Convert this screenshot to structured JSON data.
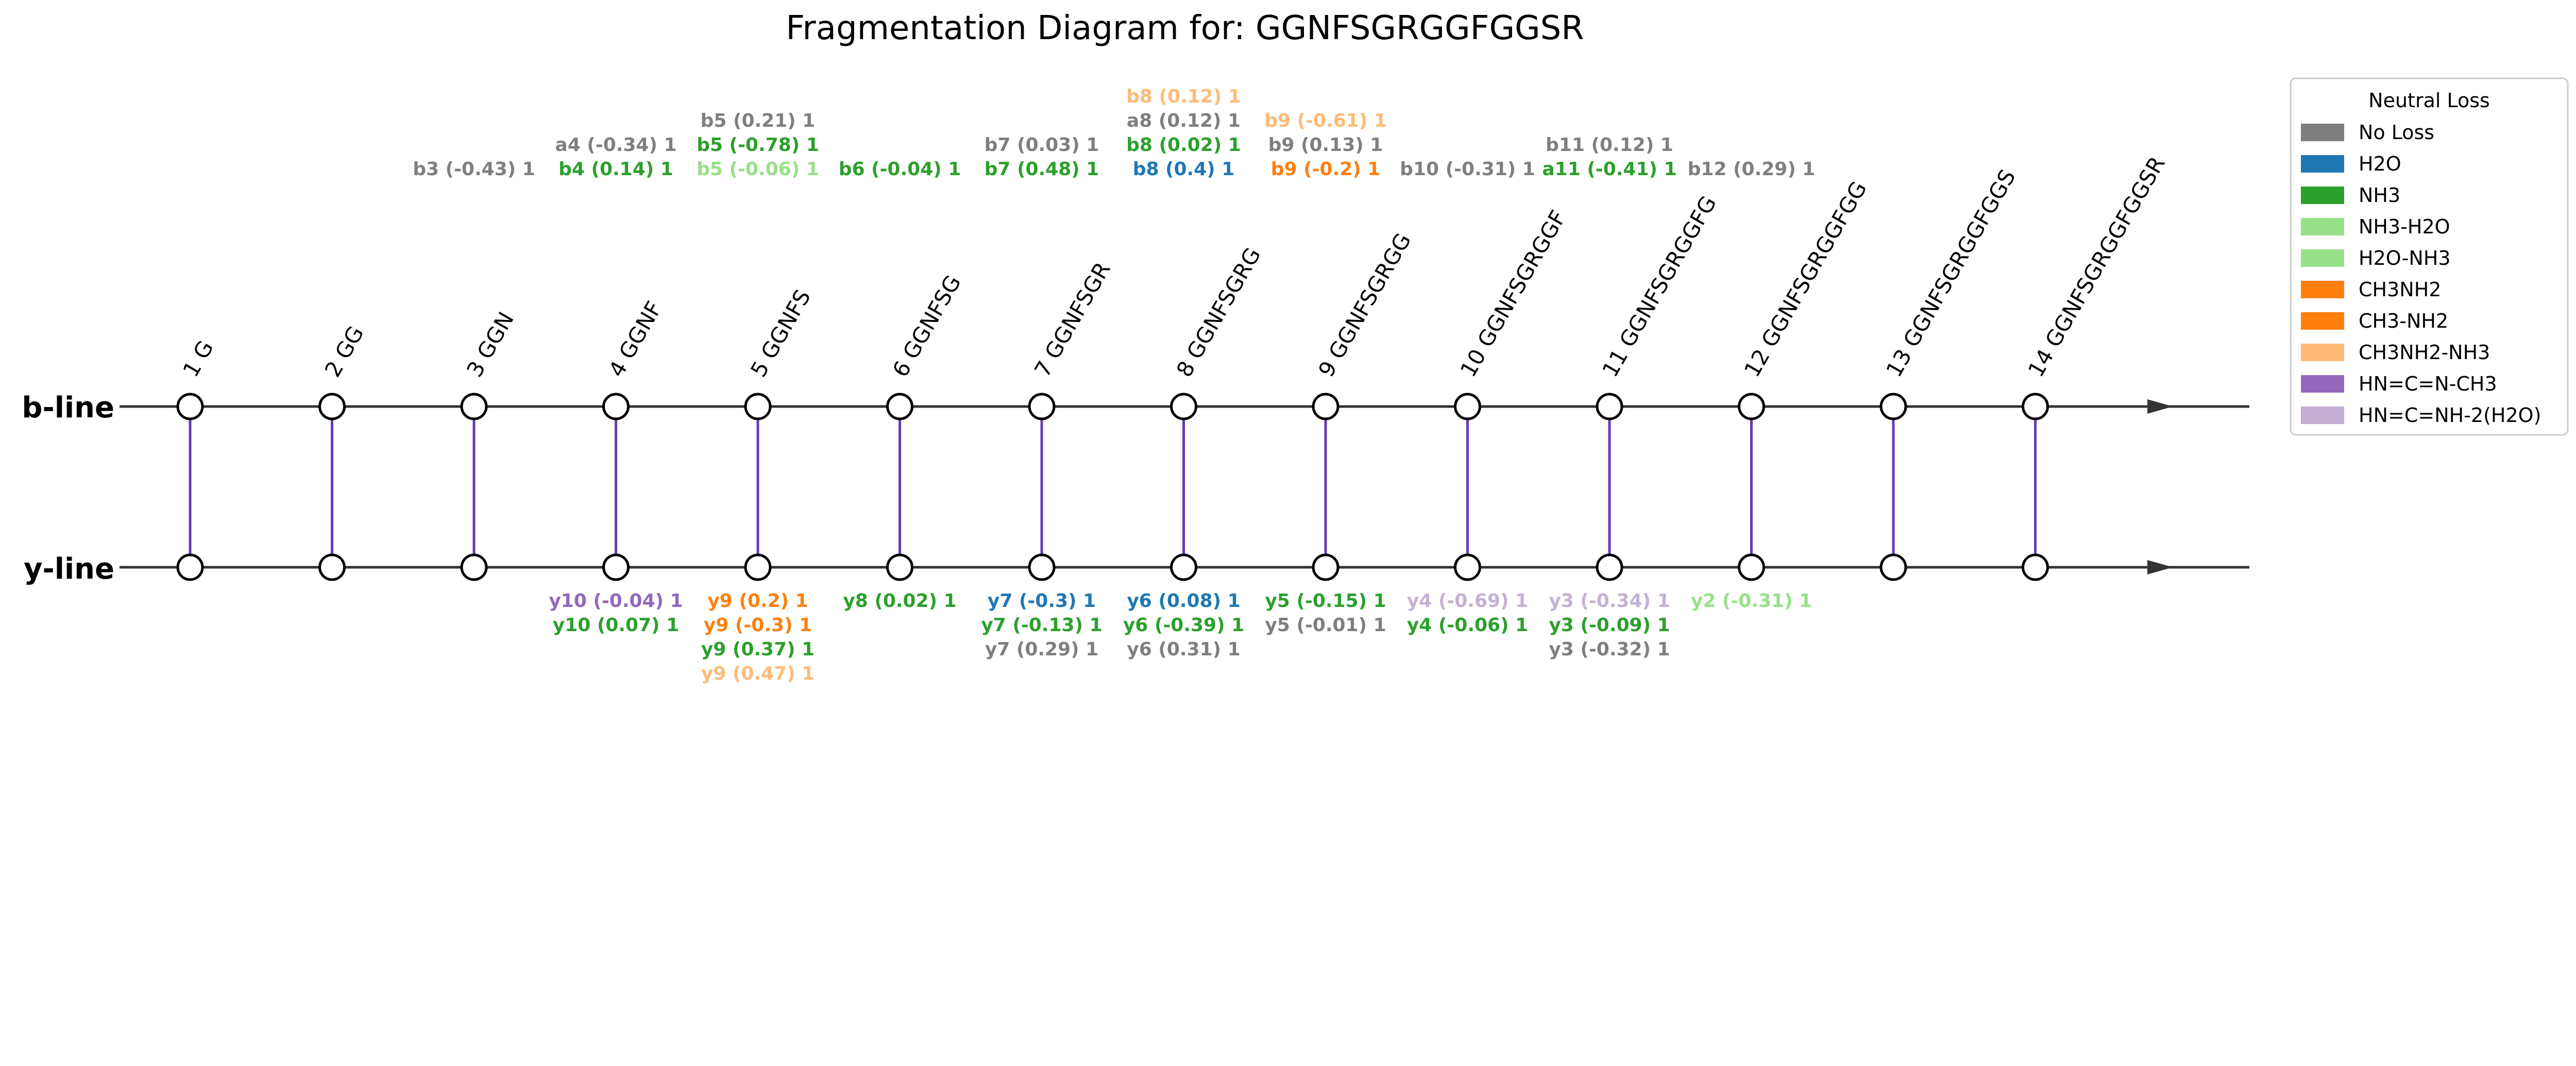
{
  "title": "Fragmentation Diagram for: GGNFSGRGGFGGSR",
  "b_line_label": "b-line",
  "y_line_label": "y-line",
  "positions": [
    "1 G",
    "2 GG",
    "3 GGN",
    "4 GGNF",
    "5 GGNFS",
    "6 GGNFSG",
    "7 GGNFSGR",
    "8 GGNFSGRG",
    "9 GGNFSGRGG",
    "10 GGNFSGRGGF",
    "11 GGNFSGRGGFG",
    "12 GGNFSGRGGFGG",
    "13 GGNFSGRGGFGGS",
    "14 GGNFSGRGGFGGSR"
  ],
  "colors": {
    "No Loss": "#7f7f7f",
    "H2O": "#1f77b4",
    "NH3": "#2ca02c",
    "NH3-H2O": "#98df8a",
    "H2O-NH3": "#98df8a",
    "CH3NH2": "#ff7f0e",
    "CH3-NH2": "#ff7f0e",
    "CH3NH2-NH3": "#ffbb78",
    "HN=C=N-CH3": "#9467bd",
    "HN=C=NH-2(H2O)": "#c5b0d5"
  },
  "line_color": "#673ab7",
  "b_fragments": [
    {
      "pos": 3,
      "labels": [
        {
          "text": "b3 (-0.43) 1",
          "loss": "No Loss"
        }
      ]
    },
    {
      "pos": 4,
      "labels": [
        {
          "text": "b4 (0.14) 1",
          "loss": "NH3"
        },
        {
          "text": "a4 (-0.34) 1",
          "loss": "No Loss"
        }
      ]
    },
    {
      "pos": 5,
      "labels": [
        {
          "text": "b5 (-0.06) 1",
          "loss": "NH3-H2O"
        },
        {
          "text": "b5 (-0.78) 1",
          "loss": "NH3"
        },
        {
          "text": "b5 (0.21) 1",
          "loss": "No Loss"
        }
      ]
    },
    {
      "pos": 6,
      "labels": [
        {
          "text": "b6 (-0.04) 1",
          "loss": "NH3"
        }
      ]
    },
    {
      "pos": 7,
      "labels": [
        {
          "text": "b7 (0.48) 1",
          "loss": "NH3"
        },
        {
          "text": "b7 (0.03) 1",
          "loss": "No Loss"
        }
      ]
    },
    {
      "pos": 8,
      "labels": [
        {
          "text": "b8 (0.4) 1",
          "loss": "H2O"
        },
        {
          "text": "b8 (0.02) 1",
          "loss": "NH3"
        },
        {
          "text": "a8 (0.12) 1",
          "loss": "No Loss"
        },
        {
          "text": "b8 (0.12) 1",
          "loss": "CH3NH2-NH3"
        }
      ]
    },
    {
      "pos": 9,
      "labels": [
        {
          "text": "b9 (-0.2) 1",
          "loss": "CH3NH2"
        },
        {
          "text": "b9 (0.13) 1",
          "loss": "No Loss"
        },
        {
          "text": "b9 (-0.61) 1",
          "loss": "CH3NH2-NH3"
        }
      ]
    },
    {
      "pos": 10,
      "labels": [
        {
          "text": "b10 (-0.31) 1",
          "loss": "No Loss"
        }
      ]
    },
    {
      "pos": 11,
      "labels": [
        {
          "text": "a11 (-0.41) 1",
          "loss": "NH3"
        },
        {
          "text": "b11 (0.12) 1",
          "loss": "No Loss"
        }
      ]
    },
    {
      "pos": 12,
      "labels": [
        {
          "text": "b12 (0.29) 1",
          "loss": "No Loss"
        }
      ]
    }
  ],
  "y_fragments": [
    {
      "pos": 4,
      "labels": [
        {
          "text": "y10 (-0.04) 1",
          "loss": "HN=C=N-CH3"
        },
        {
          "text": "y10 (0.07) 1",
          "loss": "NH3"
        }
      ]
    },
    {
      "pos": 5,
      "labels": [
        {
          "text": "y9 (0.2) 1",
          "loss": "CH3NH2"
        },
        {
          "text": "y9 (-0.3) 1",
          "loss": "CH3NH2"
        },
        {
          "text": "y9 (0.37) 1",
          "loss": "NH3"
        },
        {
          "text": "y9 (0.47) 1",
          "loss": "CH3NH2-NH3"
        }
      ]
    },
    {
      "pos": 6,
      "labels": [
        {
          "text": "y8 (0.02) 1",
          "loss": "NH3"
        }
      ]
    },
    {
      "pos": 7,
      "labels": [
        {
          "text": "y7 (-0.3) 1",
          "loss": "H2O"
        },
        {
          "text": "y7 (-0.13) 1",
          "loss": "NH3"
        },
        {
          "text": "y7 (0.29) 1",
          "loss": "No Loss"
        }
      ]
    },
    {
      "pos": 8,
      "labels": [
        {
          "text": "y6 (0.08) 1",
          "loss": "H2O"
        },
        {
          "text": "y6 (-0.39) 1",
          "loss": "NH3"
        },
        {
          "text": "y6 (0.31) 1",
          "loss": "No Loss"
        }
      ]
    },
    {
      "pos": 9,
      "labels": [
        {
          "text": "y5 (-0.15) 1",
          "loss": "NH3"
        },
        {
          "text": "y5 (-0.01) 1",
          "loss": "No Loss"
        }
      ]
    },
    {
      "pos": 10,
      "labels": [
        {
          "text": "y4 (-0.69) 1",
          "loss": "HN=C=NH-2(H2O)"
        },
        {
          "text": "y4 (-0.06) 1",
          "loss": "NH3"
        }
      ]
    },
    {
      "pos": 11,
      "labels": [
        {
          "text": "y3 (-0.34) 1",
          "loss": "HN=C=NH-2(H2O)"
        },
        {
          "text": "y3 (-0.09) 1",
          "loss": "NH3"
        },
        {
          "text": "y3 (-0.32) 1",
          "loss": "No Loss"
        }
      ]
    },
    {
      "pos": 12,
      "labels": [
        {
          "text": "y2 (-0.31) 1",
          "loss": "NH3-H2O"
        }
      ]
    }
  ],
  "legend": {
    "title": "Neutral Loss",
    "items": [
      "No Loss",
      "H2O",
      "NH3",
      "NH3-H2O",
      "H2O-NH3",
      "CH3NH2",
      "CH3-NH2",
      "CH3NH2-NH3",
      "HN=C=N-CH3",
      "HN=C=NH-2(H2O)"
    ]
  }
}
